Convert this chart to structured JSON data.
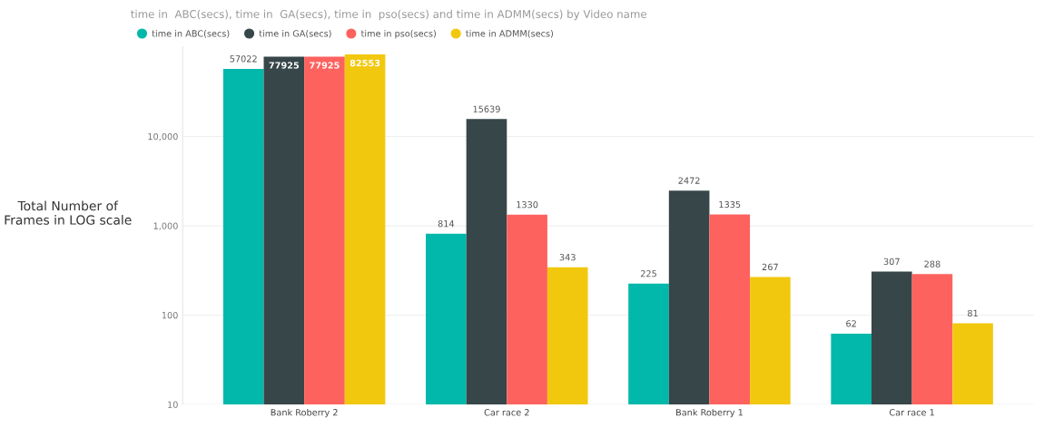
{
  "chart_data": {
    "type": "bar",
    "title": "time in  ABC(secs), time in  GA(secs), time in  pso(secs) and time in ADMM(secs) by Video name",
    "ylabel": "Total Number of\nFrames in LOG scale",
    "categories": [
      "Bank Roberry 2",
      "Car race 2",
      "Bank Roberry 1",
      "Car race 1"
    ],
    "series": [
      {
        "name": "time in ABC(secs)",
        "color": "#01b8aa",
        "values": [
          57022,
          814,
          225,
          62
        ]
      },
      {
        "name": "time in GA(secs)",
        "color": "#374649",
        "values": [
          77925,
          15639,
          2472,
          307
        ]
      },
      {
        "name": "time in pso(secs)",
        "color": "#fd625e",
        "values": [
          77925,
          1330,
          1335,
          288
        ]
      },
      {
        "name": "time in ADMM(secs)",
        "color": "#f2c80f",
        "values": [
          82553,
          343,
          267,
          81
        ]
      }
    ],
    "log": true,
    "ylim": [
      10,
      100000
    ],
    "yticks": [
      {
        "value": 10,
        "label": "10"
      },
      {
        "value": 100,
        "label": "100"
      },
      {
        "value": 1000,
        "label": "1,000"
      },
      {
        "value": 10000,
        "label": "10,000"
      }
    ],
    "grid": "y",
    "legend": "top left",
    "data_labels": true
  }
}
